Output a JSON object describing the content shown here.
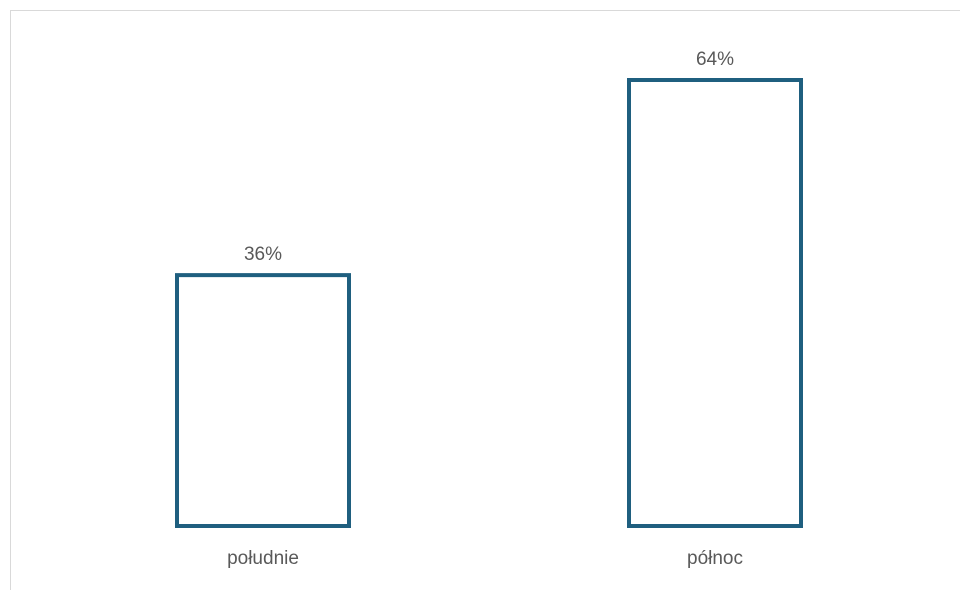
{
  "chart_data": {
    "type": "bar",
    "title": "",
    "xlabel": "",
    "ylabel": "",
    "categories": [
      "południe",
      "północ"
    ],
    "values": [
      36,
      64
    ],
    "labels": [
      "36%",
      "64%"
    ],
    "ylim": [
      0,
      64
    ],
    "grid": false,
    "legend": "none",
    "bar_style": "outline",
    "colors": {
      "bar_stroke": "#1f5f7f",
      "bar_fill": "#ffffff",
      "text": "#595959",
      "frame": "#d9d9d9"
    }
  }
}
